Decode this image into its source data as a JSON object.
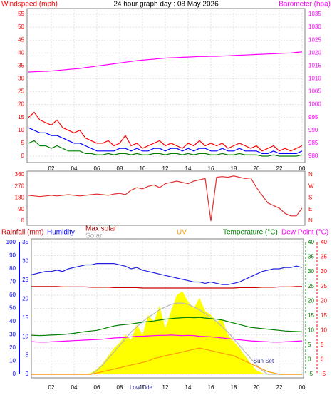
{
  "chart_data": [
    {
      "type": "line",
      "title": "24 hour graph day : 08 May 2026",
      "ylabel": "Windspeed (mph)",
      "y2label": "Barometer (hpa)",
      "ylabel_color": "#ff0000",
      "y2label_color": "#ff00ff",
      "grid": true,
      "x": [
        0,
        0.5,
        1,
        1.5,
        2,
        2.5,
        3,
        3.5,
        4,
        4.5,
        5,
        5.5,
        6,
        6.5,
        7,
        7.5,
        8,
        8.5,
        9,
        9.5,
        10,
        10.5,
        11,
        11.5,
        12,
        12.5,
        13,
        13.5,
        14,
        14.5,
        15,
        15.5,
        16,
        16.5,
        17,
        17.5,
        18,
        18.5,
        19,
        19.5,
        20,
        20.5,
        21,
        21.5,
        22,
        22.5,
        23,
        23.5,
        24
      ],
      "xlim": [
        0,
        24
      ],
      "xticks": [
        {
          "value": 2,
          "label": "02"
        },
        {
          "value": 4,
          "label": "04"
        },
        {
          "value": 6,
          "label": "06"
        },
        {
          "value": 8,
          "label": "08"
        },
        10,
        12,
        14,
        16,
        18,
        20,
        22,
        {
          "value": 24,
          "label": "00"
        }
      ],
      "ylim": [
        0,
        55
      ],
      "yticks": [
        0,
        5,
        10,
        15,
        20,
        25,
        30,
        35,
        40,
        45,
        50,
        55
      ],
      "y2lim": [
        980,
        1035
      ],
      "y2ticks": [
        980,
        985,
        990,
        995,
        1000,
        1005,
        1010,
        1015,
        1020,
        1025,
        1030,
        1035
      ],
      "series": [
        {
          "color": "#ff0000",
          "values": [
            15,
            17,
            14,
            13,
            12,
            14,
            11,
            10,
            9,
            10,
            7,
            6,
            5,
            5,
            6,
            4,
            5,
            8,
            4,
            5,
            3,
            4,
            5,
            6,
            4,
            5,
            4,
            3,
            5,
            4,
            6,
            4,
            5,
            4,
            5,
            3,
            4,
            5,
            4,
            3,
            4,
            2,
            3,
            4,
            2,
            3,
            2,
            3,
            4
          ]
        },
        {
          "color": "#0000ff",
          "values": [
            11,
            10,
            9,
            9,
            8,
            8,
            7,
            6,
            5,
            5,
            4,
            3,
            2,
            2,
            2,
            2,
            3,
            3,
            2,
            3,
            2,
            2,
            3,
            3,
            2,
            3,
            3,
            2,
            3,
            2,
            3,
            3,
            2,
            2,
            3,
            2,
            2,
            3,
            2,
            2,
            2,
            1,
            1,
            2,
            1,
            1,
            1,
            1,
            2
          ]
        },
        {
          "color": "#008000",
          "values": [
            5,
            6,
            4,
            4,
            3,
            4,
            3,
            2,
            2,
            2,
            1,
            1,
            0.5,
            0.5,
            1,
            0.5,
            1,
            1,
            0.5,
            1,
            0.5,
            0.5,
            1,
            1,
            0.5,
            1,
            1,
            0.5,
            1,
            0.5,
            1,
            1,
            0.5,
            0.5,
            1,
            0.5,
            0.5,
            1,
            0.5,
            0.5,
            0.5,
            0,
            0,
            0.5,
            0,
            0,
            0,
            0,
            0.5
          ]
        },
        {
          "color": "#ff00ff",
          "axis": "y2",
          "values": [
            1012.6,
            1012.7,
            1012.8,
            1012.9,
            1013.0,
            1013.2,
            1013.4,
            1013.6,
            1013.8,
            1014.0,
            1014.3,
            1014.6,
            1014.9,
            1015.2,
            1015.5,
            1015.8,
            1016.1,
            1016.4,
            1016.7,
            1017.0,
            1017.2,
            1017.4,
            1017.6,
            1017.8,
            1018.0,
            1018.1,
            1018.2,
            1018.3,
            1018.4,
            1018.5,
            1018.6,
            1018.6,
            1018.7,
            1018.7,
            1018.8,
            1018.9,
            1019.0,
            1019.1,
            1019.2,
            1019.3,
            1019.4,
            1019.5,
            1019.6,
            1019.7,
            1019.8,
            1019.9,
            1020.0,
            1020.2,
            1020.4
          ]
        }
      ]
    },
    {
      "type": "line",
      "axis_color": "#ff0000",
      "x": [
        0,
        0.5,
        1,
        1.5,
        2,
        2.5,
        3,
        3.5,
        4,
        4.5,
        5,
        5.5,
        6,
        6.5,
        7,
        7.5,
        8,
        8.5,
        9,
        9.5,
        10,
        10.5,
        11,
        11.5,
        12,
        12.5,
        13,
        13.5,
        14,
        14.5,
        15,
        15.5,
        16,
        16.5,
        17,
        17.5,
        18,
        18.5,
        19,
        19.5,
        20,
        20.5,
        21,
        21.5,
        22,
        22.5,
        23,
        23.5,
        24
      ],
      "xlim": [
        0,
        24
      ],
      "ylim": [
        0,
        360
      ],
      "yticks": [
        0,
        90,
        180,
        270,
        360
      ],
      "y2ticks": [
        {
          "value": 0,
          "label": "N"
        },
        {
          "value": 90,
          "label": "E"
        },
        {
          "value": 180,
          "label": "S"
        },
        {
          "value": 270,
          "label": "W"
        },
        {
          "value": 360,
          "label": "N"
        }
      ],
      "series": [
        {
          "color": "#e03030",
          "values": [
            200,
            195,
            190,
            195,
            200,
            195,
            200,
            205,
            200,
            195,
            200,
            205,
            210,
            205,
            200,
            210,
            215,
            205,
            240,
            260,
            250,
            270,
            280,
            260,
            290,
            300,
            310,
            300,
            290,
            310,
            320,
            330,
            0,
            340,
            345,
            340,
            350,
            340,
            330,
            335,
            260,
            200,
            140,
            120,
            100,
            60,
            40,
            40,
            100
          ]
        }
      ]
    },
    {
      "type": "line",
      "grid": true,
      "x": [
        0,
        0.5,
        1,
        1.5,
        2,
        2.5,
        3,
        3.5,
        4,
        4.5,
        5,
        5.5,
        6,
        6.5,
        7,
        7.5,
        8,
        8.5,
        9,
        9.5,
        10,
        10.5,
        11,
        11.5,
        12,
        12.5,
        13,
        13.5,
        14,
        14.5,
        15,
        15.5,
        16,
        16.5,
        17,
        17.5,
        18,
        18.5,
        19,
        19.5,
        20,
        20.5,
        21,
        21.5,
        22,
        22.5,
        23,
        23.5,
        24
      ],
      "xlim": [
        0,
        24
      ],
      "xticks": [
        {
          "value": 2,
          "label": "02"
        },
        {
          "value": 4,
          "label": "04"
        },
        {
          "value": 6,
          "label": "06"
        },
        {
          "value": 8,
          "label": "08"
        },
        10,
        12,
        14,
        16,
        18,
        20,
        22,
        {
          "value": 24,
          "label": "00"
        }
      ],
      "ylim": [
        0,
        100
      ],
      "yticks": [
        0,
        10,
        20,
        30,
        40,
        50,
        60,
        70,
        80,
        90,
        100
      ],
      "y3lim": [
        0,
        35
      ],
      "y3ticks": [
        0,
        5,
        10,
        15,
        20,
        25,
        30,
        35
      ],
      "y2lim": [
        -5,
        40
      ],
      "y2ticks": [
        -5,
        0,
        5,
        10,
        15,
        20,
        25,
        30,
        35,
        40
      ],
      "y4lim": [
        -5,
        40
      ],
      "y4ticks": [
        -5,
        0,
        5,
        10,
        15,
        20,
        25,
        30,
        35,
        40
      ],
      "axis_colors": {
        "y": "#0000ff",
        "y3": "#0000ff",
        "y2": "#008000",
        "y4": "#ff0000"
      },
      "annotations": [
        "Low Tide",
        "Sun Set"
      ],
      "series": [
        {
          "name": "Rainfall (mm)",
          "color": "#cc0000",
          "label_color": "#cc0000",
          "axis": "y3",
          "values": [
            23.3,
            23.3,
            23.3,
            23.3,
            23.3,
            23.3,
            23.2,
            23.2,
            23.2,
            23.2,
            23.2,
            23.1,
            23.1,
            23.1,
            23.1,
            23.0,
            23.0,
            23.0,
            23.0,
            23.0,
            22.9,
            22.9,
            22.9,
            22.9,
            22.9,
            22.9,
            22.9,
            22.9,
            22.9,
            22.9,
            22.9,
            22.9,
            22.9,
            22.9,
            22.9,
            22.9,
            22.9,
            23.0,
            23.0,
            23.0,
            23.0,
            23.1,
            23.1,
            23.1,
            23.2,
            23.2,
            23.2,
            23.3,
            23.3
          ]
        },
        {
          "name": "Humidity",
          "color": "#2020e0",
          "label_color": "#0000ff",
          "values": [
            75,
            76,
            77,
            78,
            78,
            79,
            78,
            80,
            81,
            82,
            83,
            83,
            84,
            84,
            84,
            84,
            83,
            82,
            80,
            81,
            79,
            78,
            77,
            76,
            75,
            74,
            73,
            72,
            71,
            70,
            70,
            69,
            70,
            69,
            68,
            68,
            69,
            70,
            72,
            74,
            76,
            78,
            79,
            80,
            80,
            81,
            81,
            82,
            81
          ]
        },
        {
          "name": "Max solar",
          "color": "#b8b8b8",
          "label_color": "#a00000",
          "values": [
            0,
            0,
            0,
            0,
            0,
            0,
            0,
            0,
            0,
            0,
            0,
            0,
            3,
            7,
            12,
            17,
            22,
            27,
            32,
            36,
            40,
            43,
            46,
            49,
            51,
            53,
            54,
            54,
            53,
            51,
            49,
            46,
            43,
            40,
            36,
            32,
            27,
            22,
            17,
            12,
            7,
            3,
            0,
            0,
            0,
            0,
            0,
            0,
            0
          ]
        },
        {
          "name": "Solar",
          "color": "#ffff00",
          "label_color": "#b0b0b0",
          "fill": true,
          "values": [
            0,
            0,
            0,
            0,
            0,
            0,
            0,
            0,
            0,
            0,
            0,
            1,
            4,
            8,
            14,
            20,
            24,
            30,
            26,
            38,
            30,
            45,
            40,
            52,
            35,
            48,
            60,
            63,
            55,
            50,
            58,
            48,
            45,
            40,
            42,
            30,
            25,
            20,
            14,
            8,
            3,
            1,
            0,
            0,
            0,
            0,
            0,
            0,
            0
          ]
        },
        {
          "name": "UV",
          "color": "#ff9900",
          "label_color": "#ff9900",
          "values": [
            0,
            0,
            0,
            0,
            0,
            0,
            0,
            0,
            0,
            0,
            0,
            0,
            1,
            2,
            3,
            4,
            5,
            6,
            7,
            8,
            9,
            10,
            12,
            13,
            14,
            15,
            16,
            17,
            18,
            19,
            20,
            19,
            18,
            17,
            16,
            15,
            14,
            12,
            10,
            8,
            6,
            4,
            2,
            1,
            0,
            0,
            0,
            0,
            0
          ]
        },
        {
          "name": "Temperature (°C)",
          "color": "#008000",
          "label_color": "#008000",
          "axis": "y2",
          "values": [
            8.4,
            8.3,
            8.2,
            8.3,
            8.4,
            8.5,
            8.6,
            8.8,
            9.0,
            9.3,
            9.6,
            9.8,
            10.0,
            10.5,
            11.0,
            11.5,
            11.8,
            12.0,
            12.2,
            12.5,
            12.8,
            13.0,
            13.2,
            13.5,
            13.8,
            14.0,
            14.2,
            14.3,
            14.4,
            14.3,
            14.4,
            14.2,
            14.0,
            13.8,
            13.5,
            13.0,
            12.5,
            12.0,
            11.5,
            11.0,
            10.8,
            10.6,
            10.4,
            10.2,
            10.0,
            9.8,
            9.7,
            9.6,
            9.5
          ]
        },
        {
          "name": "Dew Point (°C)",
          "color": "#ff00ff",
          "label_color": "#ff00ff",
          "axis": "y4",
          "values": [
            6.2,
            6.1,
            6.0,
            6.0,
            6.1,
            6.2,
            6.3,
            6.4,
            6.5,
            6.6,
            6.7,
            6.8,
            6.9,
            7.0,
            7.2,
            7.4,
            7.5,
            7.6,
            7.8,
            8.0,
            8.0,
            8.1,
            8.2,
            8.3,
            8.3,
            8.4,
            8.3,
            8.2,
            8.3,
            8.2,
            8.0,
            7.9,
            7.8,
            7.6,
            7.4,
            7.2,
            7.0,
            6.8,
            6.6,
            6.4,
            6.3,
            6.2,
            6.1,
            6.0,
            6.0,
            6.1,
            6.2,
            6.3,
            6.4
          ]
        }
      ]
    }
  ]
}
